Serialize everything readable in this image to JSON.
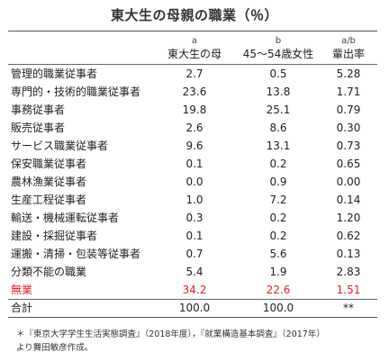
{
  "title": "東大生の母親の職業（％）",
  "header": {
    "col_a_letter": "a",
    "col_a_label": "東大生の母",
    "col_b_letter": "b",
    "col_b_label": "45～54歳女性",
    "col_r_letter": "a/b",
    "col_r_label": "輩出率"
  },
  "rows": [
    {
      "label": "管理的職業従事者",
      "a": "2.7",
      "b": "0.5",
      "r": "5.28"
    },
    {
      "label": "専門的・技術的職業従事者",
      "a": "23.6",
      "b": "13.8",
      "r": "1.71"
    },
    {
      "label": "事務従事者",
      "a": "19.8",
      "b": "25.1",
      "r": "0.79"
    },
    {
      "label": "販売従事者",
      "a": "2.6",
      "b": "8.6",
      "r": "0.30"
    },
    {
      "label": "サービス職業従事者",
      "a": "9.6",
      "b": "13.1",
      "r": "0.73"
    },
    {
      "label": "保安職業従事者",
      "a": "0.1",
      "b": "0.2",
      "r": "0.65"
    },
    {
      "label": "農林漁業従事者",
      "a": "0.0",
      "b": "0.9",
      "r": "0.00"
    },
    {
      "label": "生産工程従事者",
      "a": "1.0",
      "b": "7.2",
      "r": "0.14"
    },
    {
      "label": "輸送・機械運転従事者",
      "a": "0.3",
      "b": "0.2",
      "r": "1.20"
    },
    {
      "label": "建設・採掘従事者",
      "a": "0.1",
      "b": "0.2",
      "r": "0.62"
    },
    {
      "label": "運搬・清掃・包装等従事者",
      "a": "0.7",
      "b": "5.6",
      "r": "0.13"
    },
    {
      "label": "分類不能の職業",
      "a": "5.4",
      "b": "1.9",
      "r": "2.83"
    },
    {
      "label": "無業",
      "a": "34.2",
      "b": "22.6",
      "r": "1.51"
    }
  ],
  "total": {
    "label": "合計",
    "a": "100.0",
    "b": "100.0",
    "r": "**"
  },
  "highlight_color": "#e0242b",
  "note": {
    "line1": "＊『東京大学学生生活実態調査』（2018年度），『就業構造基本調査』（2017年）",
    "line2": "より舞田敏彦作成。"
  }
}
